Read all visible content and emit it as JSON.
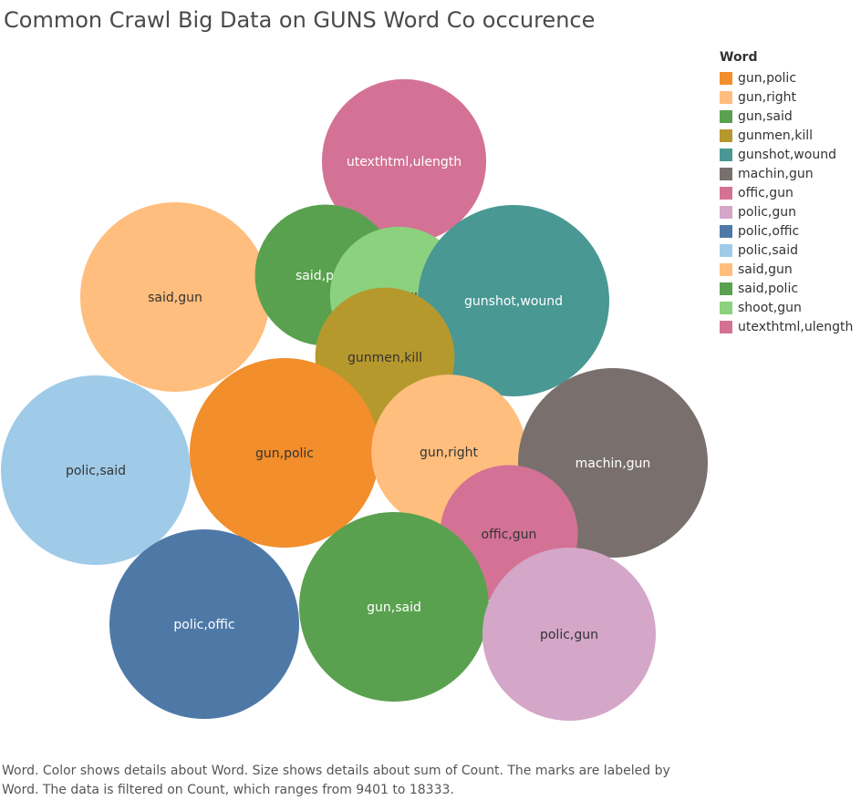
{
  "title": "Common Crawl Big Data on GUNS Word Co occurence",
  "caption": {
    "line1": "Word.  Color shows details about Word.  Size shows details about sum of Count.  The marks are labeled by",
    "line2": "Word. The data is filtered on Count, which ranges from 9401 to 18333."
  },
  "legend": {
    "title": "Word",
    "items": [
      {
        "label": "gun,polic",
        "color": "#f28e2b"
      },
      {
        "label": "gun,right",
        "color": "#ffbe7d"
      },
      {
        "label": "gun,said",
        "color": "#59a14f"
      },
      {
        "label": "gunmen,kill",
        "color": "#b6992d"
      },
      {
        "label": "gunshot,wound",
        "color": "#499894"
      },
      {
        "label": "machin,gun",
        "color": "#79706e"
      },
      {
        "label": "offic,gun",
        "color": "#d37295"
      },
      {
        "label": "polic,gun",
        "color": "#d4a6c8"
      },
      {
        "label": "polic,offic",
        "color": "#4e79a7"
      },
      {
        "label": "polic,said",
        "color": "#a0cbe8"
      },
      {
        "label": "said,gun",
        "color": "#ffbe7d"
      },
      {
        "label": "said,polic",
        "color": "#59a14f"
      },
      {
        "label": "shoot,gun",
        "color": "#8cd17d"
      },
      {
        "label": "utexthtml,ulength",
        "color": "#d37295"
      }
    ]
  },
  "chart_data": {
    "type": "bubble",
    "title": "Common Crawl Big Data on GUNS Word Co occurence",
    "size_field": "sum of Count",
    "count_range": [
      9401,
      18333
    ],
    "bubbles": [
      {
        "label": "utexthtml,ulength",
        "count": 13500,
        "color": "#d37295",
        "text_color": "#ffffff"
      },
      {
        "label": "said,gun",
        "count": 18000,
        "color": "#ffbe7d",
        "text_color": "#333333"
      },
      {
        "label": "said,polic",
        "count": 10000,
        "color": "#59a14f",
        "text_color": "#ffffff"
      },
      {
        "label": "shoot,gun",
        "count": 9401,
        "color": "#8cd17d",
        "text_color": "#333333"
      },
      {
        "label": "gunshot,wound",
        "count": 18333,
        "color": "#499894",
        "text_color": "#ffffff"
      },
      {
        "label": "gunmen,kill",
        "count": 9700,
        "color": "#b6992d",
        "text_color": "#333333"
      },
      {
        "label": "polic,said",
        "count": 18000,
        "color": "#a0cbe8",
        "text_color": "#333333"
      },
      {
        "label": "gun,polic",
        "count": 18000,
        "color": "#f28e2b",
        "text_color": "#333333"
      },
      {
        "label": "gun,right",
        "count": 12000,
        "color": "#ffbe7d",
        "text_color": "#333333"
      },
      {
        "label": "machin,gun",
        "count": 18000,
        "color": "#79706e",
        "text_color": "#ffffff"
      },
      {
        "label": "offic,gun",
        "count": 9500,
        "color": "#d37295",
        "text_color": "#333333"
      },
      {
        "label": "polic,offic",
        "count": 18000,
        "color": "#4e79a7",
        "text_color": "#ffffff"
      },
      {
        "label": "gun,said",
        "count": 18000,
        "color": "#59a14f",
        "text_color": "#ffffff"
      },
      {
        "label": "polic,gun",
        "count": 15000,
        "color": "#d4a6c8",
        "text_color": "#333333"
      }
    ]
  }
}
